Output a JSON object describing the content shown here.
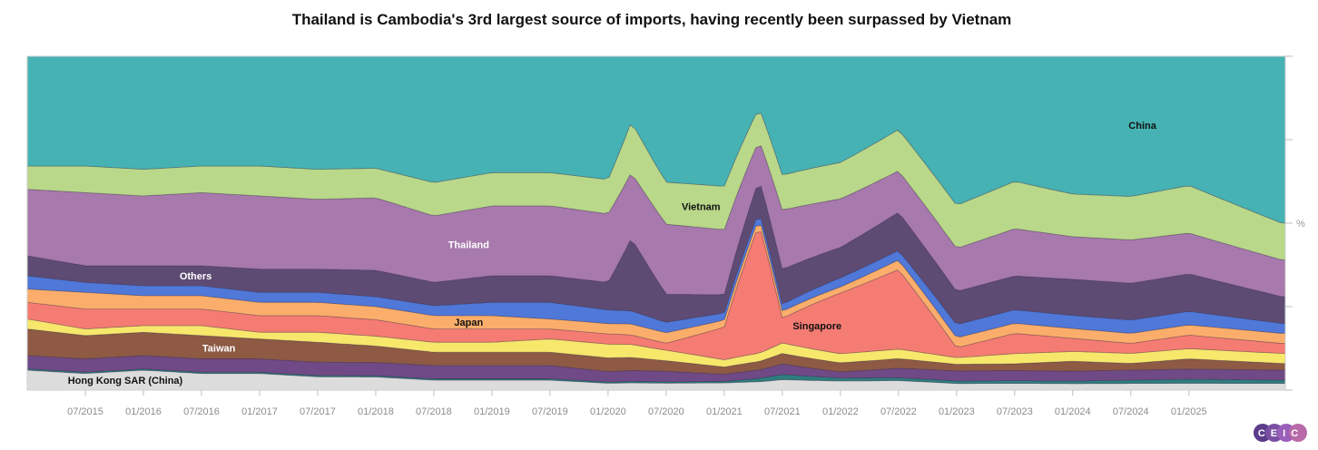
{
  "title": "Thailand is Cambodia's 3rd largest source of imports, having recently been surpassed by Vietnam",
  "y_unit_label": "%",
  "logo_text": "CEIC",
  "chart_data": {
    "type": "area",
    "stacked": true,
    "normalized": true,
    "x_range": [
      "2015-01",
      "2025-10"
    ],
    "x_ticks": [
      "07/2015",
      "01/2016",
      "07/2016",
      "01/2017",
      "07/2017",
      "01/2018",
      "07/2018",
      "01/2019",
      "07/2019",
      "01/2020",
      "07/2020",
      "01/2021",
      "07/2021",
      "01/2022",
      "07/2022",
      "01/2023",
      "07/2023",
      "01/2024",
      "07/2024",
      "01/2025"
    ],
    "ylim": [
      0,
      100
    ],
    "grid": false,
    "legend": "none",
    "series": [
      {
        "name": "Hong Kong SAR (China)",
        "color": "#dcdcdc",
        "label_color": "#111111",
        "values": [
          [
            2015.0,
            6
          ],
          [
            2015.5,
            5
          ],
          [
            2016.0,
            6
          ],
          [
            2016.5,
            5
          ],
          [
            2017.0,
            5
          ],
          [
            2017.5,
            4
          ],
          [
            2018.0,
            4
          ],
          [
            2018.5,
            3
          ],
          [
            2019.0,
            3
          ],
          [
            2019.5,
            3
          ],
          [
            2020.0,
            2
          ],
          [
            2020.5,
            2
          ],
          [
            2021.0,
            2
          ],
          [
            2021.5,
            3
          ],
          [
            2022.0,
            3
          ],
          [
            2022.5,
            3
          ],
          [
            2023.0,
            2
          ],
          [
            2023.5,
            2
          ],
          [
            2024.0,
            2
          ],
          [
            2024.5,
            2
          ],
          [
            2025.0,
            2
          ],
          [
            2025.8,
            2
          ]
        ]
      },
      {
        "name": "Teal",
        "color": "#2e7d7d",
        "label_color": "",
        "values": [
          [
            2015.0,
            0.4
          ],
          [
            2016.0,
            0.4
          ],
          [
            2017.0,
            0.4
          ],
          [
            2018.0,
            0.4
          ],
          [
            2019.0,
            0.4
          ],
          [
            2020.0,
            0.4
          ],
          [
            2021.0,
            0.4
          ],
          [
            2021.5,
            1.5
          ],
          [
            2022.0,
            1
          ],
          [
            2023.0,
            0.8
          ],
          [
            2024.0,
            0.8
          ],
          [
            2025.0,
            1.2
          ],
          [
            2025.8,
            1
          ]
        ]
      },
      {
        "name": "Purple small",
        "color": "#6f4a86",
        "label_color": "",
        "values": [
          [
            2015.0,
            4
          ],
          [
            2015.5,
            4
          ],
          [
            2016.0,
            4
          ],
          [
            2016.5,
            4
          ],
          [
            2017.0,
            4
          ],
          [
            2017.5,
            4
          ],
          [
            2018.0,
            4
          ],
          [
            2018.5,
            4
          ],
          [
            2019.0,
            4
          ],
          [
            2019.5,
            4
          ],
          [
            2020.0,
            3
          ],
          [
            2020.5,
            3
          ],
          [
            2021.0,
            2
          ],
          [
            2021.5,
            3
          ],
          [
            2022.0,
            2
          ],
          [
            2022.5,
            3
          ],
          [
            2023.0,
            3
          ],
          [
            2023.5,
            3
          ],
          [
            2024.0,
            3
          ],
          [
            2024.5,
            3
          ],
          [
            2025.0,
            3
          ],
          [
            2025.8,
            3
          ]
        ]
      },
      {
        "name": "Taiwan",
        "color": "#8e5a44",
        "label_color": "#ffffff",
        "values": [
          [
            2015.0,
            8
          ],
          [
            2015.5,
            7
          ],
          [
            2016.0,
            7
          ],
          [
            2016.5,
            7
          ],
          [
            2017.0,
            6
          ],
          [
            2017.5,
            6
          ],
          [
            2018.0,
            5
          ],
          [
            2018.5,
            4
          ],
          [
            2019.0,
            4
          ],
          [
            2019.5,
            4
          ],
          [
            2020.0,
            4
          ],
          [
            2020.5,
            3
          ],
          [
            2021.0,
            2
          ],
          [
            2021.5,
            3
          ],
          [
            2022.0,
            3
          ],
          [
            2022.5,
            3
          ],
          [
            2023.0,
            2
          ],
          [
            2023.5,
            2
          ],
          [
            2024.0,
            3
          ],
          [
            2024.5,
            2
          ],
          [
            2025.0,
            3
          ],
          [
            2025.8,
            2
          ]
        ]
      },
      {
        "name": "Yellow",
        "color": "#f7e76b",
        "label_color": "",
        "values": [
          [
            2015.0,
            3
          ],
          [
            2015.5,
            2
          ],
          [
            2016.0,
            2
          ],
          [
            2016.5,
            3
          ],
          [
            2017.0,
            2
          ],
          [
            2017.5,
            3
          ],
          [
            2018.0,
            3
          ],
          [
            2018.5,
            3
          ],
          [
            2019.0,
            3
          ],
          [
            2019.5,
            4
          ],
          [
            2020.0,
            4
          ],
          [
            2020.5,
            3
          ],
          [
            2021.0,
            2
          ],
          [
            2021.5,
            3
          ],
          [
            2022.0,
            3
          ],
          [
            2022.5,
            3
          ],
          [
            2023.0,
            2
          ],
          [
            2023.5,
            3
          ],
          [
            2024.0,
            3
          ],
          [
            2024.5,
            3
          ],
          [
            2025.0,
            3
          ],
          [
            2025.8,
            3
          ]
        ]
      },
      {
        "name": "Singapore",
        "color": "#f57c73",
        "label_color": "#111111",
        "values": [
          [
            2015.0,
            5
          ],
          [
            2015.5,
            6
          ],
          [
            2016.0,
            5
          ],
          [
            2016.5,
            5
          ],
          [
            2017.0,
            5
          ],
          [
            2017.5,
            5
          ],
          [
            2018.0,
            5
          ],
          [
            2018.5,
            4
          ],
          [
            2019.0,
            4
          ],
          [
            2019.5,
            3
          ],
          [
            2020.0,
            3
          ],
          [
            2020.5,
            2
          ],
          [
            2021.0,
            9
          ],
          [
            2021.3,
            40
          ],
          [
            2021.5,
            7
          ],
          [
            2022.0,
            20
          ],
          [
            2022.5,
            25
          ],
          [
            2023.0,
            3
          ],
          [
            2023.5,
            6
          ],
          [
            2024.0,
            4
          ],
          [
            2024.5,
            3
          ],
          [
            2025.0,
            4
          ],
          [
            2025.8,
            3
          ]
        ]
      },
      {
        "name": "Japan",
        "color": "#fbae6b",
        "label_color": "#111111",
        "values": [
          [
            2015.0,
            4
          ],
          [
            2015.5,
            5
          ],
          [
            2016.0,
            4
          ],
          [
            2016.5,
            4
          ],
          [
            2017.0,
            4
          ],
          [
            2017.5,
            4
          ],
          [
            2018.0,
            4
          ],
          [
            2018.5,
            4
          ],
          [
            2019.0,
            4
          ],
          [
            2019.5,
            3
          ],
          [
            2020.0,
            3
          ],
          [
            2020.5,
            3
          ],
          [
            2021.0,
            2
          ],
          [
            2021.5,
            2
          ],
          [
            2022.0,
            2
          ],
          [
            2022.5,
            3
          ],
          [
            2023.0,
            3
          ],
          [
            2023.5,
            3
          ],
          [
            2024.0,
            3
          ],
          [
            2024.5,
            3
          ],
          [
            2025.0,
            3
          ],
          [
            2025.8,
            3
          ]
        ]
      },
      {
        "name": "Blue",
        "color": "#4f78d8",
        "label_color": "",
        "values": [
          [
            2015.0,
            4
          ],
          [
            2015.5,
            3
          ],
          [
            2016.0,
            3
          ],
          [
            2016.5,
            3
          ],
          [
            2017.0,
            3
          ],
          [
            2017.5,
            3
          ],
          [
            2018.0,
            3
          ],
          [
            2018.5,
            3
          ],
          [
            2019.0,
            4
          ],
          [
            2019.5,
            5
          ],
          [
            2020.0,
            4
          ],
          [
            2020.5,
            3
          ],
          [
            2021.0,
            2
          ],
          [
            2021.5,
            2
          ],
          [
            2022.0,
            3
          ],
          [
            2022.5,
            3
          ],
          [
            2023.0,
            4
          ],
          [
            2023.5,
            4
          ],
          [
            2024.0,
            4
          ],
          [
            2024.5,
            4
          ],
          [
            2025.0,
            4
          ],
          [
            2025.8,
            3
          ]
        ]
      },
      {
        "name": "Others",
        "color": "#5e4b73",
        "label_color": "#ffffff",
        "values": [
          [
            2015.0,
            6
          ],
          [
            2015.5,
            5
          ],
          [
            2016.0,
            6
          ],
          [
            2016.5,
            6
          ],
          [
            2017.0,
            7
          ],
          [
            2017.5,
            7
          ],
          [
            2018.0,
            8
          ],
          [
            2018.5,
            7
          ],
          [
            2019.0,
            8
          ],
          [
            2019.5,
            8
          ],
          [
            2020.0,
            8
          ],
          [
            2020.2,
            20
          ],
          [
            2020.5,
            8
          ],
          [
            2021.0,
            5
          ],
          [
            2021.3,
            10
          ],
          [
            2021.5,
            10
          ],
          [
            2022.0,
            10
          ],
          [
            2022.5,
            12
          ],
          [
            2023.0,
            10
          ],
          [
            2023.5,
            10
          ],
          [
            2024.0,
            11
          ],
          [
            2024.5,
            11
          ],
          [
            2025.0,
            11
          ],
          [
            2025.8,
            8
          ]
        ]
      },
      {
        "name": "Thailand",
        "color": "#a779ac",
        "label_color": "#ffffff",
        "values": [
          [
            2015.0,
            20
          ],
          [
            2015.5,
            22
          ],
          [
            2016.0,
            21
          ],
          [
            2016.5,
            22
          ],
          [
            2017.0,
            22
          ],
          [
            2017.5,
            21
          ],
          [
            2018.0,
            22
          ],
          [
            2018.5,
            20
          ],
          [
            2019.0,
            21
          ],
          [
            2019.5,
            21
          ],
          [
            2020.0,
            20
          ],
          [
            2020.2,
            18
          ],
          [
            2020.5,
            20
          ],
          [
            2021.0,
            18
          ],
          [
            2021.3,
            12
          ],
          [
            2021.5,
            17
          ],
          [
            2022.0,
            16
          ],
          [
            2022.5,
            13
          ],
          [
            2023.0,
            13
          ],
          [
            2023.5,
            14
          ],
          [
            2024.0,
            13
          ],
          [
            2024.5,
            13
          ],
          [
            2025.0,
            12
          ],
          [
            2025.8,
            11
          ]
        ]
      },
      {
        "name": "Vietnam",
        "color": "#b9d88a",
        "label_color": "#111111",
        "values": [
          [
            2015.0,
            7
          ],
          [
            2015.5,
            8
          ],
          [
            2016.0,
            8
          ],
          [
            2016.5,
            8
          ],
          [
            2017.0,
            9
          ],
          [
            2017.5,
            9
          ],
          [
            2018.0,
            9
          ],
          [
            2018.5,
            10
          ],
          [
            2019.0,
            10
          ],
          [
            2019.5,
            10
          ],
          [
            2020.0,
            10
          ],
          [
            2020.2,
            14
          ],
          [
            2020.5,
            12
          ],
          [
            2021.0,
            12
          ],
          [
            2021.3,
            10
          ],
          [
            2021.5,
            10
          ],
          [
            2022.0,
            12
          ],
          [
            2022.5,
            13
          ],
          [
            2023.0,
            13
          ],
          [
            2023.5,
            14
          ],
          [
            2024.0,
            13
          ],
          [
            2024.5,
            13
          ],
          [
            2025.0,
            14
          ],
          [
            2025.8,
            11
          ]
        ]
      },
      {
        "name": "China",
        "color": "#46b2b3",
        "label_color": "#111111",
        "values": [
          [
            2015.0,
            33
          ],
          [
            2015.5,
            33
          ],
          [
            2016.0,
            34
          ],
          [
            2016.5,
            33
          ],
          [
            2017.0,
            33
          ],
          [
            2017.5,
            34
          ],
          [
            2018.0,
            34
          ],
          [
            2018.5,
            38
          ],
          [
            2019.0,
            35
          ],
          [
            2019.5,
            35
          ],
          [
            2020.0,
            36
          ],
          [
            2020.2,
            18
          ],
          [
            2020.5,
            36
          ],
          [
            2021.0,
            36
          ],
          [
            2021.3,
            16
          ],
          [
            2021.5,
            34
          ],
          [
            2022.0,
            35
          ],
          [
            2022.5,
            23
          ],
          [
            2023.0,
            45
          ],
          [
            2023.5,
            37
          ],
          [
            2024.0,
            42
          ],
          [
            2024.5,
            42
          ],
          [
            2025.0,
            38
          ],
          [
            2025.8,
            50
          ]
        ]
      }
    ]
  }
}
